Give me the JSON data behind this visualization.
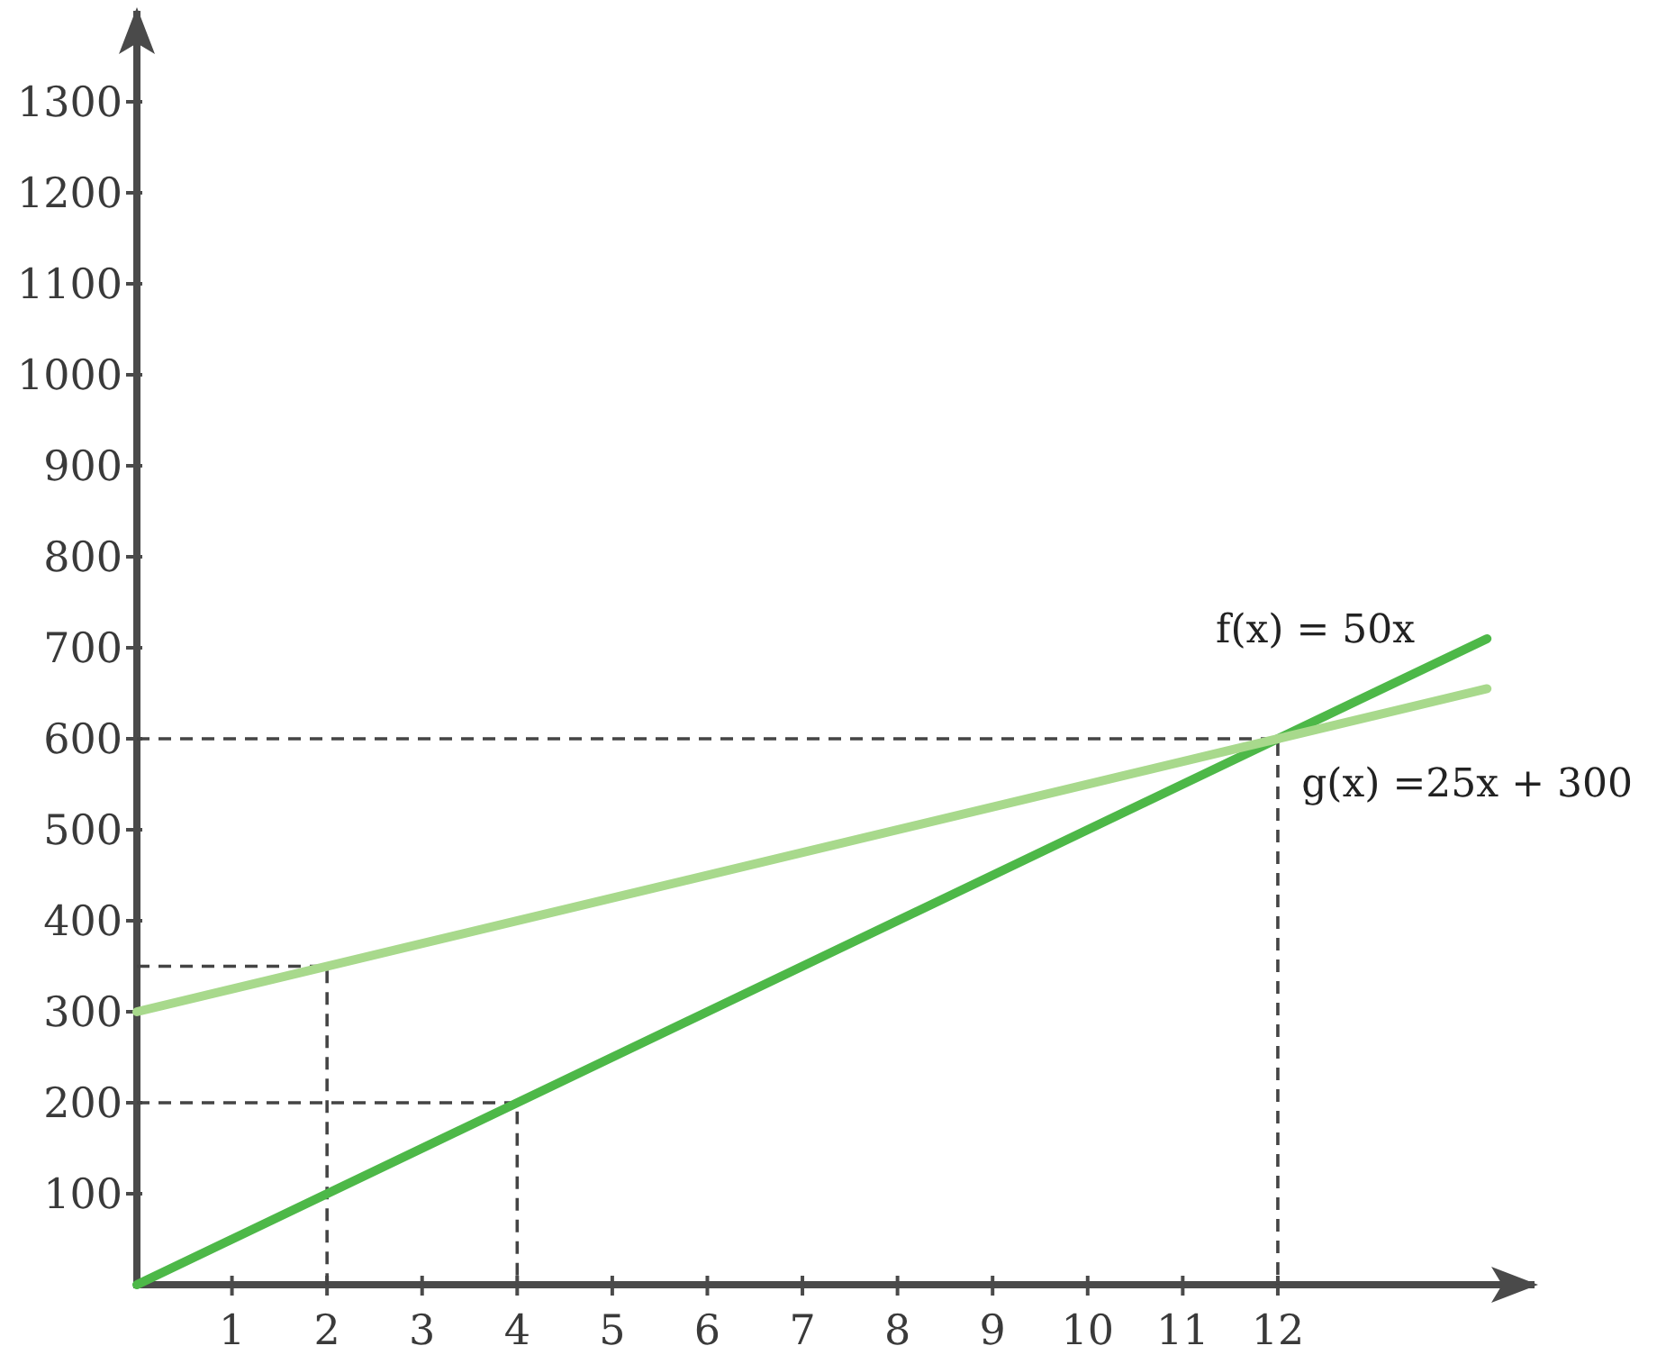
{
  "chart_data": {
    "type": "line",
    "xlim": [
      0,
      14.7
    ],
    "ylim": [
      0,
      1400
    ],
    "xticks": [
      1,
      2,
      3,
      4,
      5,
      6,
      7,
      8,
      9,
      10,
      11,
      12
    ],
    "yticks": [
      100,
      200,
      300,
      400,
      500,
      600,
      700,
      800,
      900,
      1000,
      1100,
      1200,
      1300
    ],
    "line_style": "solid",
    "series": [
      {
        "name": "f(x) = 50x",
        "color": "#4db848",
        "x": [
          0,
          14.2
        ],
        "values": [
          0,
          710
        ]
      },
      {
        "name": "g(x) =25x + 300",
        "color": "#a8d98c",
        "x": [
          0,
          14.2
        ],
        "values": [
          300,
          655
        ]
      },
      {
        "color": "#444444",
        "line_style": "dashed",
        "x": [
          0,
          2,
          2
        ],
        "values": [
          350,
          350,
          0
        ]
      },
      {
        "color": "#444444",
        "line_style": "dashed",
        "x": [
          0,
          4,
          4
        ],
        "values": [
          200,
          200,
          0
        ]
      },
      {
        "color": "#444444",
        "line_style": "dashed",
        "x": [
          0,
          12,
          12
        ],
        "values": [
          600,
          600,
          0
        ]
      }
    ]
  }
}
